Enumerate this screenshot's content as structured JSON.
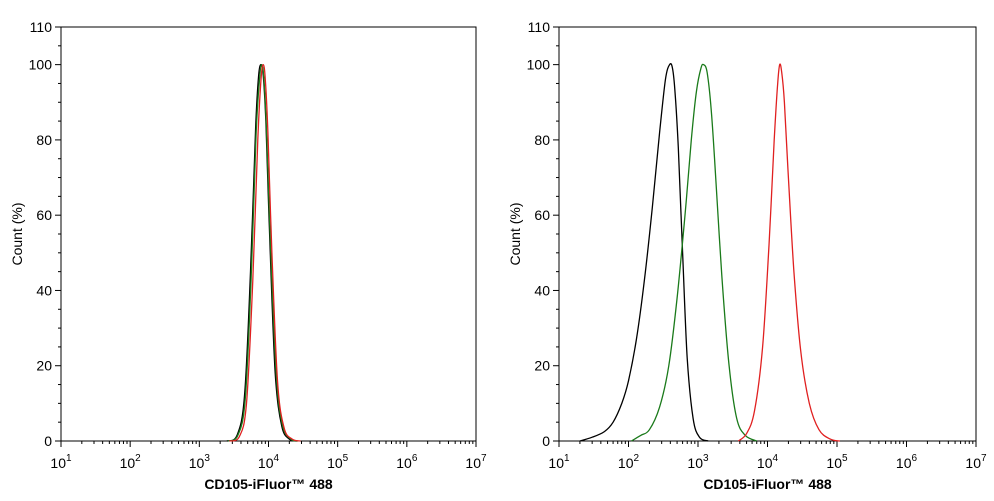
{
  "chart_data": [
    {
      "type": "line",
      "xlabel": "CD105-iFluor™ 488",
      "ylabel": "Count (%)",
      "x_scale": "log",
      "xlim": [
        10,
        10000000
      ],
      "ylim": [
        0,
        110
      ],
      "x_ticks": [
        {
          "base": "10",
          "exp": "1"
        },
        {
          "base": "10",
          "exp": "2"
        },
        {
          "base": "10",
          "exp": "3"
        },
        {
          "base": "10",
          "exp": "4"
        },
        {
          "base": "10",
          "exp": "5"
        },
        {
          "base": "10",
          "exp": "6"
        },
        {
          "base": "10",
          "exp": "7"
        }
      ],
      "y_ticks": [
        "0",
        "20",
        "40",
        "60",
        "80",
        "100",
        "110"
      ],
      "y_tick_values": [
        0,
        20,
        40,
        60,
        80,
        100,
        110
      ],
      "grid": false,
      "series": [
        {
          "color": "#000000",
          "x": [
            2500,
            3500,
            4500,
            5500,
            6500,
            7200,
            7800,
            8400,
            9200,
            10500,
            12500,
            15500,
            20000,
            26000
          ],
          "y": [
            0,
            1.5,
            12,
            45,
            83,
            97,
            100,
            97,
            84,
            52,
            18,
            4,
            0.5,
            0
          ]
        },
        {
          "color": "#1a7a1a",
          "x": [
            2600,
            3600,
            4600,
            5600,
            6600,
            7400,
            8000,
            8600,
            9400,
            10800,
            13000,
            16000,
            21000,
            27000
          ],
          "y": [
            0,
            1.5,
            11,
            43,
            81,
            96,
            100,
            96,
            82,
            50,
            17,
            4,
            0.5,
            0
          ]
        },
        {
          "color": "#e02020",
          "x": [
            2700,
            3800,
            4800,
            5900,
            7000,
            7800,
            8400,
            9000,
            9800,
            11200,
            13500,
            16800,
            22000,
            29000
          ],
          "y": [
            0,
            1.2,
            10,
            42,
            80,
            96,
            100,
            96,
            82,
            50,
            16,
            3.5,
            0.5,
            0
          ]
        }
      ]
    },
    {
      "type": "line",
      "xlabel": "CD105-iFluor™ 488",
      "ylabel": "Count (%)",
      "x_scale": "log",
      "xlim": [
        10,
        10000000
      ],
      "ylim": [
        0,
        110
      ],
      "x_ticks": [
        {
          "base": "10",
          "exp": "1"
        },
        {
          "base": "10",
          "exp": "2"
        },
        {
          "base": "10",
          "exp": "3"
        },
        {
          "base": "10",
          "exp": "4"
        },
        {
          "base": "10",
          "exp": "5"
        },
        {
          "base": "10",
          "exp": "6"
        },
        {
          "base": "10",
          "exp": "7"
        }
      ],
      "y_ticks": [
        "0",
        "20",
        "40",
        "60",
        "80",
        "100",
        "110"
      ],
      "y_tick_values": [
        0,
        20,
        40,
        60,
        80,
        100,
        110
      ],
      "grid": false,
      "series": [
        {
          "color": "#000000",
          "x": [
            20,
            30,
            45,
            60,
            80,
            100,
            130,
            170,
            220,
            280,
            340,
            390,
            430,
            470,
            520,
            600,
            700,
            850,
            1050,
            1400
          ],
          "y": [
            0,
            1,
            2.5,
            5,
            10,
            16,
            27,
            43,
            62,
            82,
            96,
            100,
            99,
            92,
            78,
            50,
            22,
            6,
            1,
            0
          ]
        },
        {
          "color": "#1a7a1a",
          "x": [
            110,
            150,
            200,
            280,
            380,
            500,
            650,
            800,
            950,
            1100,
            1200,
            1350,
            1550,
            1800,
            2200,
            2800,
            3600,
            4800,
            7000
          ],
          "y": [
            0,
            1.5,
            3,
            9,
            20,
            38,
            60,
            80,
            93,
            99,
            100,
            98,
            88,
            70,
            44,
            20,
            6,
            1.5,
            0
          ]
        },
        {
          "color": "#e02020",
          "x": [
            3800,
            5000,
            6500,
            8500,
            10500,
            12500,
            14000,
            15000,
            16000,
            17500,
            20000,
            24000,
            30000,
            40000,
            55000,
            80000,
            110000
          ],
          "y": [
            0,
            2,
            8,
            25,
            52,
            80,
            95,
            100,
            98,
            90,
            70,
            45,
            24,
            10,
            3,
            0.5,
            0
          ]
        }
      ]
    }
  ]
}
